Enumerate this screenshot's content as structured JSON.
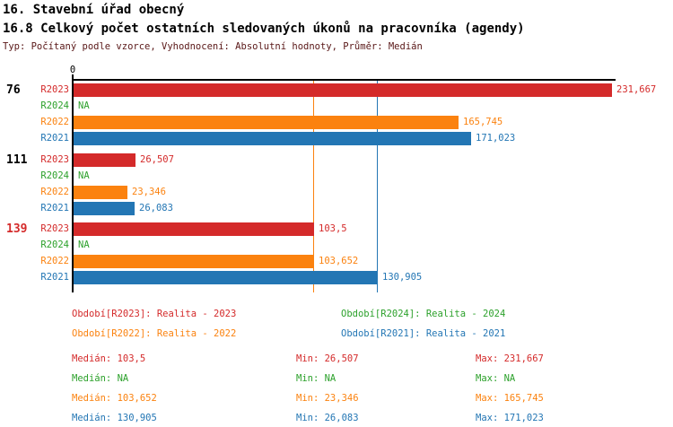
{
  "header": {
    "title": "16. Stavební úřad obecný",
    "subtitle": "16.8 Celkový počet ostatních sledovaných úkonů na pracovníka (agendy)",
    "meta": "Typ: Počítaný podle vzorce, Vyhodnocení: Absolutní hodnoty, Průměr: Medián"
  },
  "colors": {
    "red_2023": "#d42a2a",
    "green_2024": "#2ca12b",
    "orange_2022": "#fb820f",
    "blue_2021": "#2376b4",
    "axis_black": "#000000",
    "meta_maroon": "#591717"
  },
  "chart_data": {
    "type": "bar",
    "orientation": "horizontal",
    "title": "16.8 Celkový počet ostatních sledovaných úkonů na pracovníka (agendy)",
    "x_axis": {
      "origin_label": "0",
      "max_value": 231.667,
      "gridlines": false
    },
    "series_order": [
      "R2023",
      "R2024",
      "R2022",
      "R2021"
    ],
    "reference_lines": [
      {
        "series": "R2022",
        "value": 103.652,
        "color": "#fb820f"
      },
      {
        "series": "R2021",
        "value": 130.905,
        "color": "#2376b4"
      }
    ],
    "groups": [
      {
        "label": "76",
        "label_color": "#000000",
        "bars": [
          {
            "series": "R2023",
            "value": 231.667,
            "value_label": "231,667",
            "color": "#d42a2a"
          },
          {
            "series": "R2024",
            "value": null,
            "value_label": "NA",
            "color": "#2ca12b"
          },
          {
            "series": "R2022",
            "value": 165.745,
            "value_label": "165,745",
            "color": "#fb820f"
          },
          {
            "series": "R2021",
            "value": 171.023,
            "value_label": "171,023",
            "color": "#2376b4"
          }
        ]
      },
      {
        "label": "111",
        "label_color": "#000000",
        "bars": [
          {
            "series": "R2023",
            "value": 26.507,
            "value_label": "26,507",
            "color": "#d42a2a"
          },
          {
            "series": "R2024",
            "value": null,
            "value_label": "NA",
            "color": "#2ca12b"
          },
          {
            "series": "R2022",
            "value": 23.346,
            "value_label": "23,346",
            "color": "#fb820f"
          },
          {
            "series": "R2021",
            "value": 26.083,
            "value_label": "26,083",
            "color": "#2376b4"
          }
        ]
      },
      {
        "label": "139",
        "label_color": "#d42a2a",
        "bars": [
          {
            "series": "R2023",
            "value": 103.5,
            "value_label": "103,5",
            "color": "#d42a2a"
          },
          {
            "series": "R2024",
            "value": null,
            "value_label": "NA",
            "color": "#2ca12b"
          },
          {
            "series": "R2022",
            "value": 103.652,
            "value_label": "103,652",
            "color": "#fb820f"
          },
          {
            "series": "R2021",
            "value": 130.905,
            "value_label": "130,905",
            "color": "#2376b4"
          }
        ]
      }
    ]
  },
  "legend": {
    "items": [
      {
        "series": "R2023",
        "label": "Období[R2023]: Realita - 2023",
        "color": "#d42a2a",
        "col": 0,
        "row": 0
      },
      {
        "series": "R2024",
        "label": "Období[R2024]: Realita - 2024",
        "color": "#2ca12b",
        "col": 1,
        "row": 0
      },
      {
        "series": "R2022",
        "label": "Období[R2022]: Realita - 2022",
        "color": "#fb820f",
        "col": 0,
        "row": 1
      },
      {
        "series": "R2021",
        "label": "Období[R2021]: Realita - 2021",
        "color": "#2376b4",
        "col": 1,
        "row": 1
      }
    ]
  },
  "stats": {
    "rows": [
      {
        "series": "R2023",
        "color": "#d42a2a",
        "median": "Medián: 103,5",
        "min": "Min: 26,507",
        "max": "Max: 231,667"
      },
      {
        "series": "R2024",
        "color": "#2ca12b",
        "median": "Medián: NA",
        "min": "Min: NA",
        "max": "Max: NA"
      },
      {
        "series": "R2022",
        "color": "#fb820f",
        "median": "Medián: 103,652",
        "min": "Min: 23,346",
        "max": "Max: 165,745"
      },
      {
        "series": "R2021",
        "color": "#2376b4",
        "median": "Medián: 130,905",
        "min": "Min: 26,083",
        "max": "Max: 171,023"
      }
    ]
  }
}
